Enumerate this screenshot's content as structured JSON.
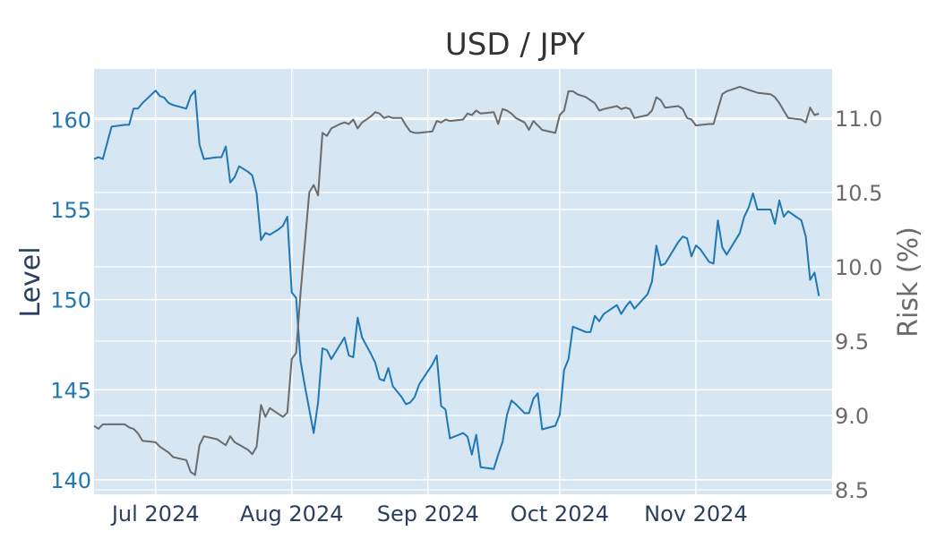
{
  "chart_data": {
    "type": "line",
    "title": "USD / JPY",
    "ylabel_left": "Level",
    "ylabel_right": "Risk (%)",
    "x_ticks": [
      {
        "date": "2024-07-01",
        "label": "Jul 2024"
      },
      {
        "date": "2024-08-01",
        "label": "Aug 2024"
      },
      {
        "date": "2024-09-01",
        "label": "Sep 2024"
      },
      {
        "date": "2024-10-01",
        "label": "Oct 2024"
      },
      {
        "date": "2024-11-01",
        "label": "Nov 2024"
      }
    ],
    "xlim": [
      "2024-06-17",
      "2024-12-02"
    ],
    "y_left": {
      "range": [
        139.2,
        162.8
      ],
      "ticks": [
        140,
        145,
        150,
        155,
        160
      ],
      "color": "#1f77b4"
    },
    "y_right": {
      "range": [
        8.47,
        11.33
      ],
      "ticks": [
        8.5,
        9.0,
        9.5,
        10.0,
        10.5,
        11.0
      ],
      "tick_labels": [
        "8.5",
        "9.0",
        "9.5",
        "10.0",
        "10.5",
        "11.0"
      ],
      "color": "#6b6b6b"
    },
    "plot_bg": "#d6e6f2",
    "grid": true,
    "series": [
      {
        "axis": "left",
        "color": "#1f77b4",
        "points": [
          [
            "2024-06-17",
            157.8
          ],
          [
            "2024-06-18",
            157.9
          ],
          [
            "2024-06-19",
            157.8
          ],
          [
            "2024-06-21",
            159.6
          ],
          [
            "2024-06-24",
            159.7
          ],
          [
            "2024-06-25",
            159.7
          ],
          [
            "2024-06-26",
            160.6
          ],
          [
            "2024-06-27",
            160.6
          ],
          [
            "2024-06-28",
            160.9
          ],
          [
            "2024-07-01",
            161.6
          ],
          [
            "2024-07-02",
            161.3
          ],
          [
            "2024-07-03",
            161.2
          ],
          [
            "2024-07-04",
            160.9
          ],
          [
            "2024-07-05",
            160.8
          ],
          [
            "2024-07-08",
            160.6
          ],
          [
            "2024-07-09",
            161.3
          ],
          [
            "2024-07-10",
            161.6
          ],
          [
            "2024-07-11",
            158.6
          ],
          [
            "2024-07-12",
            157.8
          ],
          [
            "2024-07-15",
            157.9
          ],
          [
            "2024-07-16",
            157.9
          ],
          [
            "2024-07-17",
            158.5
          ],
          [
            "2024-07-18",
            156.5
          ],
          [
            "2024-07-19",
            156.8
          ],
          [
            "2024-07-20",
            157.4
          ],
          [
            "2024-07-22",
            157.1
          ],
          [
            "2024-07-23",
            156.9
          ],
          [
            "2024-07-24",
            155.9
          ],
          [
            "2024-07-25",
            153.3
          ],
          [
            "2024-07-26",
            153.7
          ],
          [
            "2024-07-27",
            153.6
          ],
          [
            "2024-07-29",
            153.9
          ],
          [
            "2024-07-30",
            154.1
          ],
          [
            "2024-07-31",
            154.6
          ],
          [
            "2024-08-01",
            150.4
          ],
          [
            "2024-08-02",
            150.1
          ],
          [
            "2024-08-03",
            146.6
          ],
          [
            "2024-08-04",
            145.2
          ],
          [
            "2024-08-06",
            142.6
          ],
          [
            "2024-08-07",
            144.3
          ],
          [
            "2024-08-08",
            147.3
          ],
          [
            "2024-08-09",
            147.2
          ],
          [
            "2024-08-10",
            146.7
          ],
          [
            "2024-08-12",
            147.5
          ],
          [
            "2024-08-13",
            147.9
          ],
          [
            "2024-08-14",
            146.9
          ],
          [
            "2024-08-15",
            146.8
          ],
          [
            "2024-08-16",
            149.0
          ],
          [
            "2024-08-17",
            147.9
          ],
          [
            "2024-08-19",
            147.0
          ],
          [
            "2024-08-20",
            146.5
          ],
          [
            "2024-08-21",
            145.6
          ],
          [
            "2024-08-22",
            145.5
          ],
          [
            "2024-08-23",
            146.2
          ],
          [
            "2024-08-24",
            145.2
          ],
          [
            "2024-08-26",
            144.6
          ],
          [
            "2024-08-27",
            144.2
          ],
          [
            "2024-08-28",
            144.3
          ],
          [
            "2024-08-29",
            144.6
          ],
          [
            "2024-08-30",
            145.3
          ],
          [
            "2024-09-02",
            146.4
          ],
          [
            "2024-09-03",
            146.9
          ],
          [
            "2024-09-04",
            144.1
          ],
          [
            "2024-09-05",
            143.9
          ],
          [
            "2024-09-06",
            142.3
          ],
          [
            "2024-09-09",
            142.6
          ],
          [
            "2024-09-10",
            142.4
          ],
          [
            "2024-09-11",
            141.4
          ],
          [
            "2024-09-12",
            142.5
          ],
          [
            "2024-09-13",
            140.7
          ],
          [
            "2024-09-16",
            140.6
          ],
          [
            "2024-09-17",
            141.4
          ],
          [
            "2024-09-18",
            142.1
          ],
          [
            "2024-09-19",
            143.6
          ],
          [
            "2024-09-20",
            144.4
          ],
          [
            "2024-09-21",
            144.2
          ],
          [
            "2024-09-23",
            143.7
          ],
          [
            "2024-09-24",
            143.7
          ],
          [
            "2024-09-25",
            144.5
          ],
          [
            "2024-09-26",
            144.8
          ],
          [
            "2024-09-27",
            142.8
          ],
          [
            "2024-09-30",
            143.0
          ],
          [
            "2024-10-01",
            143.6
          ],
          [
            "2024-10-02",
            146.1
          ],
          [
            "2024-10-03",
            146.7
          ],
          [
            "2024-10-04",
            148.5
          ],
          [
            "2024-10-05",
            148.4
          ],
          [
            "2024-10-07",
            148.2
          ],
          [
            "2024-10-08",
            148.2
          ],
          [
            "2024-10-09",
            149.1
          ],
          [
            "2024-10-10",
            148.8
          ],
          [
            "2024-10-11",
            149.2
          ],
          [
            "2024-10-14",
            149.7
          ],
          [
            "2024-10-15",
            149.2
          ],
          [
            "2024-10-16",
            149.6
          ],
          [
            "2024-10-17",
            149.9
          ],
          [
            "2024-10-18",
            149.5
          ],
          [
            "2024-10-21",
            150.3
          ],
          [
            "2024-10-22",
            151.0
          ],
          [
            "2024-10-23",
            153.0
          ],
          [
            "2024-10-24",
            151.9
          ],
          [
            "2024-10-25",
            152.0
          ],
          [
            "2024-10-28",
            153.2
          ],
          [
            "2024-10-29",
            153.5
          ],
          [
            "2024-10-30",
            153.4
          ],
          [
            "2024-10-31",
            152.4
          ],
          [
            "2024-11-01",
            153.0
          ],
          [
            "2024-11-02",
            152.8
          ],
          [
            "2024-11-04",
            152.1
          ],
          [
            "2024-11-05",
            152.0
          ],
          [
            "2024-11-06",
            154.4
          ],
          [
            "2024-11-07",
            152.9
          ],
          [
            "2024-11-08",
            152.5
          ],
          [
            "2024-11-11",
            153.7
          ],
          [
            "2024-11-12",
            154.6
          ],
          [
            "2024-11-13",
            155.1
          ],
          [
            "2024-11-14",
            155.9
          ],
          [
            "2024-11-15",
            155.0
          ],
          [
            "2024-11-18",
            155.0
          ],
          [
            "2024-11-19",
            154.2
          ],
          [
            "2024-11-20",
            155.5
          ],
          [
            "2024-11-21",
            154.6
          ],
          [
            "2024-11-22",
            154.9
          ],
          [
            "2024-11-25",
            154.4
          ],
          [
            "2024-11-26",
            153.5
          ],
          [
            "2024-11-27",
            151.1
          ],
          [
            "2024-11-28",
            151.5
          ],
          [
            "2024-11-29",
            150.2
          ]
        ]
      },
      {
        "axis": "right",
        "color": "#6b6b6b",
        "points": [
          [
            "2024-06-17",
            8.93
          ],
          [
            "2024-06-18",
            8.91
          ],
          [
            "2024-06-19",
            8.94
          ],
          [
            "2024-06-21",
            8.94
          ],
          [
            "2024-06-24",
            8.94
          ],
          [
            "2024-06-25",
            8.92
          ],
          [
            "2024-06-26",
            8.91
          ],
          [
            "2024-06-27",
            8.88
          ],
          [
            "2024-06-28",
            8.83
          ],
          [
            "2024-07-01",
            8.82
          ],
          [
            "2024-07-02",
            8.79
          ],
          [
            "2024-07-03",
            8.77
          ],
          [
            "2024-07-04",
            8.75
          ],
          [
            "2024-07-05",
            8.72
          ],
          [
            "2024-07-08",
            8.7
          ],
          [
            "2024-07-09",
            8.62
          ],
          [
            "2024-07-10",
            8.6
          ],
          [
            "2024-07-11",
            8.8
          ],
          [
            "2024-07-12",
            8.86
          ],
          [
            "2024-07-15",
            8.84
          ],
          [
            "2024-07-16",
            8.82
          ],
          [
            "2024-07-17",
            8.8
          ],
          [
            "2024-07-18",
            8.86
          ],
          [
            "2024-07-19",
            8.82
          ],
          [
            "2024-07-22",
            8.77
          ],
          [
            "2024-07-23",
            8.74
          ],
          [
            "2024-07-24",
            8.79
          ],
          [
            "2024-07-25",
            9.07
          ],
          [
            "2024-07-26",
            8.99
          ],
          [
            "2024-07-27",
            9.05
          ],
          [
            "2024-07-29",
            9.01
          ],
          [
            "2024-07-30",
            8.99
          ],
          [
            "2024-07-31",
            9.02
          ],
          [
            "2024-08-01",
            9.38
          ],
          [
            "2024-08-02",
            9.42
          ],
          [
            "2024-08-03",
            9.82
          ],
          [
            "2024-08-05",
            10.5
          ],
          [
            "2024-08-06",
            10.55
          ],
          [
            "2024-08-07",
            10.48
          ],
          [
            "2024-08-08",
            10.9
          ],
          [
            "2024-08-09",
            10.88
          ],
          [
            "2024-08-10",
            10.93
          ],
          [
            "2024-08-12",
            10.96
          ],
          [
            "2024-08-13",
            10.97
          ],
          [
            "2024-08-14",
            10.96
          ],
          [
            "2024-08-15",
            10.99
          ],
          [
            "2024-08-16",
            10.93
          ],
          [
            "2024-08-17",
            10.97
          ],
          [
            "2024-08-19",
            11.01
          ],
          [
            "2024-08-20",
            11.04
          ],
          [
            "2024-08-21",
            11.03
          ],
          [
            "2024-08-22",
            11.0
          ],
          [
            "2024-08-23",
            11.01
          ],
          [
            "2024-08-24",
            11.0
          ],
          [
            "2024-08-26",
            11.0
          ],
          [
            "2024-08-27",
            10.95
          ],
          [
            "2024-08-28",
            10.91
          ],
          [
            "2024-08-29",
            10.9
          ],
          [
            "2024-08-30",
            10.9
          ],
          [
            "2024-09-02",
            10.91
          ],
          [
            "2024-09-03",
            10.98
          ],
          [
            "2024-09-04",
            10.97
          ],
          [
            "2024-09-05",
            10.99
          ],
          [
            "2024-09-06",
            10.98
          ],
          [
            "2024-09-09",
            10.99
          ],
          [
            "2024-09-10",
            11.03
          ],
          [
            "2024-09-11",
            11.02
          ],
          [
            "2024-09-12",
            11.05
          ],
          [
            "2024-09-13",
            11.03
          ],
          [
            "2024-09-16",
            11.04
          ],
          [
            "2024-09-17",
            10.96
          ],
          [
            "2024-09-18",
            11.06
          ],
          [
            "2024-09-19",
            11.05
          ],
          [
            "2024-09-20",
            11.03
          ],
          [
            "2024-09-21",
            11.0
          ],
          [
            "2024-09-23",
            10.97
          ],
          [
            "2024-09-24",
            10.92
          ],
          [
            "2024-09-25",
            10.98
          ],
          [
            "2024-09-26",
            10.95
          ],
          [
            "2024-09-27",
            10.92
          ],
          [
            "2024-09-30",
            10.9
          ],
          [
            "2024-10-01",
            11.02
          ],
          [
            "2024-10-02",
            11.05
          ],
          [
            "2024-10-03",
            11.18
          ],
          [
            "2024-10-04",
            11.18
          ],
          [
            "2024-10-05",
            11.16
          ],
          [
            "2024-10-07",
            11.14
          ],
          [
            "2024-10-08",
            11.12
          ],
          [
            "2024-10-09",
            11.1
          ],
          [
            "2024-10-10",
            11.05
          ],
          [
            "2024-10-11",
            11.06
          ],
          [
            "2024-10-14",
            11.08
          ],
          [
            "2024-10-15",
            11.06
          ],
          [
            "2024-10-16",
            11.07
          ],
          [
            "2024-10-17",
            11.06
          ],
          [
            "2024-10-18",
            11.0
          ],
          [
            "2024-10-21",
            11.02
          ],
          [
            "2024-10-22",
            11.05
          ],
          [
            "2024-10-23",
            11.14
          ],
          [
            "2024-10-24",
            11.12
          ],
          [
            "2024-10-25",
            11.07
          ],
          [
            "2024-10-28",
            11.08
          ],
          [
            "2024-10-29",
            11.06
          ],
          [
            "2024-10-30",
            11.0
          ],
          [
            "2024-10-31",
            10.99
          ],
          [
            "2024-11-01",
            10.95
          ],
          [
            "2024-11-04",
            10.96
          ],
          [
            "2024-11-05",
            10.96
          ],
          [
            "2024-11-06",
            11.06
          ],
          [
            "2024-11-07",
            11.16
          ],
          [
            "2024-11-08",
            11.18
          ],
          [
            "2024-11-11",
            11.21
          ],
          [
            "2024-11-12",
            11.2
          ],
          [
            "2024-11-13",
            11.19
          ],
          [
            "2024-11-14",
            11.18
          ],
          [
            "2024-11-15",
            11.17
          ],
          [
            "2024-11-18",
            11.16
          ],
          [
            "2024-11-19",
            11.14
          ],
          [
            "2024-11-20",
            11.1
          ],
          [
            "2024-11-21",
            11.05
          ],
          [
            "2024-11-22",
            11.0
          ],
          [
            "2024-11-25",
            10.99
          ],
          [
            "2024-11-26",
            10.97
          ],
          [
            "2024-11-27",
            11.07
          ],
          [
            "2024-11-28",
            11.02
          ],
          [
            "2024-11-29",
            11.03
          ]
        ]
      }
    ]
  }
}
